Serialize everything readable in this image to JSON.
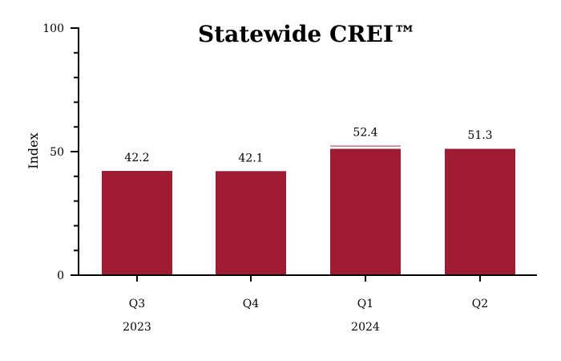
{
  "chart_data": {
    "type": "bar",
    "title": "Statewide CREI™",
    "ylabel": "Index",
    "xlabel": "",
    "ylim": [
      0,
      100
    ],
    "y_major_ticks": [
      0,
      50,
      100
    ],
    "y_minor_tick_step": 10,
    "categories": [
      "Q3",
      "Q4",
      "Q1",
      "Q2"
    ],
    "year_labels": [
      "2023",
      "2024"
    ],
    "values": [
      42.2,
      42.1,
      52.4,
      51.3
    ],
    "value_labels": [
      "42.2",
      "42.1",
      "52.4",
      "51.3"
    ],
    "bar_color": "#9e1b32",
    "axis_break_at": 50,
    "grid": false,
    "legend": "none"
  }
}
